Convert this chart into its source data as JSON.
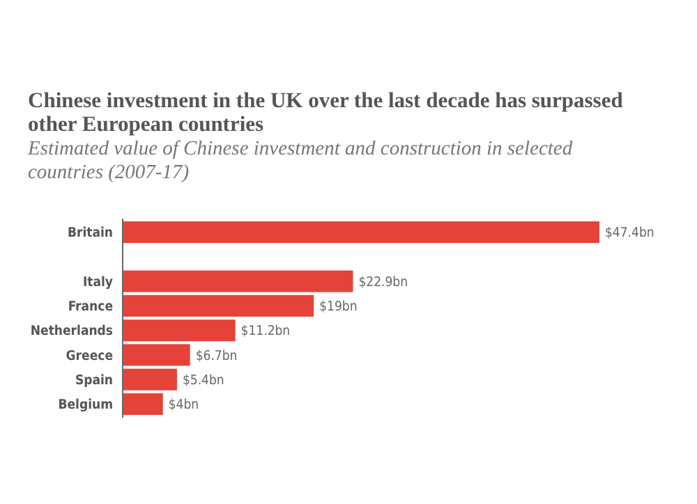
{
  "chart_data": {
    "type": "bar",
    "orientation": "horizontal",
    "title": "Chinese investment in the UK over the last decade has surpassed other European countries",
    "subtitle": "Estimated value of Chinese investment and construction in selected countries (2007-17)",
    "categories": [
      "Britain",
      null,
      "Italy",
      "France",
      "Netherlands",
      "Greece",
      "Spain",
      "Belgium"
    ],
    "values": [
      47.4,
      null,
      22.9,
      19,
      11.2,
      6.7,
      5.4,
      4
    ],
    "value_labels": [
      "$47.4bn",
      null,
      "$22.9bn",
      "$19bn",
      "$11.2bn",
      "$6.7bn",
      "$5.4bn",
      "$4bn"
    ],
    "color": "#e5433a"
  }
}
